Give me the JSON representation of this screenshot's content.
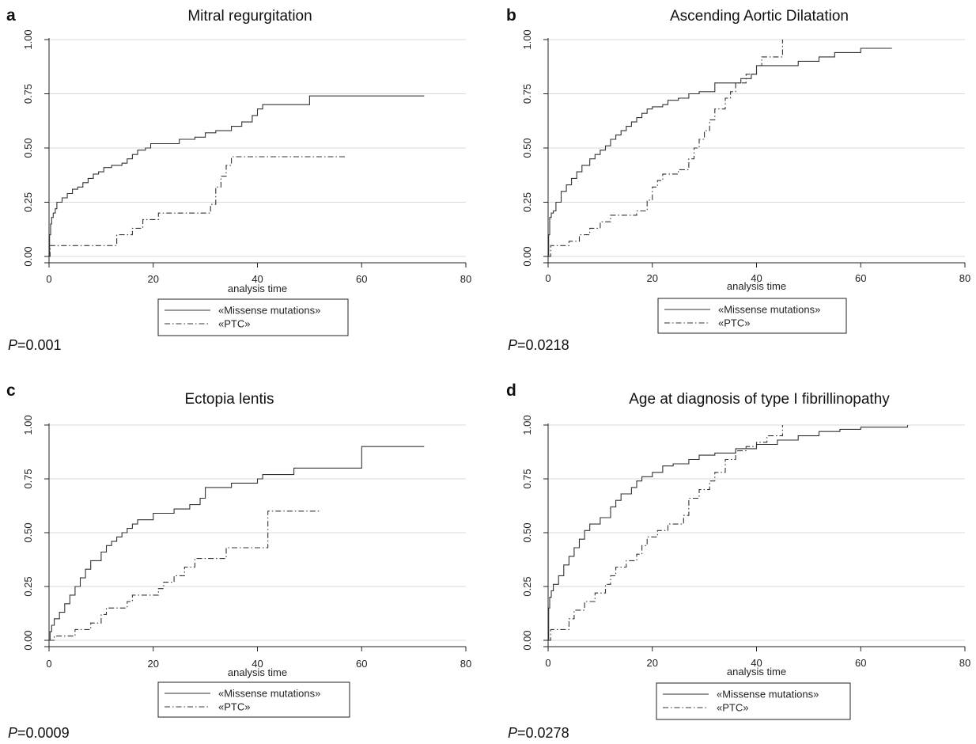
{
  "chart_data": [
    {
      "type": "line",
      "panel": "a",
      "title": "Mitral regurgitation",
      "xlabel": "analysis time",
      "ylabel": "",
      "xlim": [
        0,
        80
      ],
      "ylim": [
        0,
        1
      ],
      "x_ticks": [
        "0",
        "20",
        "40",
        "60",
        "80"
      ],
      "y_ticks": [
        "0.00",
        "0.25",
        "0.50",
        "0.75",
        "1.00"
      ],
      "grid": "horizontal",
      "legend": "below",
      "p_label": "P",
      "p_value": "=0.001",
      "series": [
        {
          "name": "«Missense mutations»",
          "style": "solid",
          "points": [
            [
              0,
              0
            ],
            [
              0.1,
              0.1
            ],
            [
              0.3,
              0.15
            ],
            [
              0.5,
              0.18
            ],
            [
              0.8,
              0.2
            ],
            [
              1.2,
              0.22
            ],
            [
              1.5,
              0.25
            ],
            [
              2.5,
              0.27
            ],
            [
              3.5,
              0.29
            ],
            [
              4.5,
              0.31
            ],
            [
              5.5,
              0.32
            ],
            [
              6.5,
              0.34
            ],
            [
              7.5,
              0.36
            ],
            [
              8.5,
              0.38
            ],
            [
              9.5,
              0.39
            ],
            [
              10.5,
              0.41
            ],
            [
              12,
              0.42
            ],
            [
              14,
              0.43
            ],
            [
              15,
              0.45
            ],
            [
              16,
              0.47
            ],
            [
              17,
              0.49
            ],
            [
              18.5,
              0.5
            ],
            [
              19.5,
              0.52
            ],
            [
              21,
              0.52
            ],
            [
              25,
              0.54
            ],
            [
              28,
              0.55
            ],
            [
              30,
              0.57
            ],
            [
              32,
              0.58
            ],
            [
              35,
              0.6
            ],
            [
              37,
              0.62
            ],
            [
              39,
              0.65
            ],
            [
              40,
              0.68
            ],
            [
              41,
              0.7
            ],
            [
              50,
              0.74
            ],
            [
              72,
              0.74
            ]
          ]
        },
        {
          "name": "«PTC»",
          "style": "dashdot",
          "points": [
            [
              0,
              0
            ],
            [
              0.2,
              0.05
            ],
            [
              13,
              0.1
            ],
            [
              16,
              0.13
            ],
            [
              18,
              0.17
            ],
            [
              21,
              0.2
            ],
            [
              31,
              0.24
            ],
            [
              32,
              0.32
            ],
            [
              33,
              0.37
            ],
            [
              34,
              0.42
            ],
            [
              35,
              0.46
            ],
            [
              57,
              0.46
            ]
          ]
        }
      ]
    },
    {
      "type": "line",
      "panel": "b",
      "title": "Ascending Aortic Dilatation",
      "xlabel": "analysis time",
      "ylabel": "",
      "xlim": [
        0,
        80
      ],
      "ylim": [
        0,
        1
      ],
      "x_ticks": [
        "0",
        "20",
        "40",
        "60",
        "80"
      ],
      "y_ticks": [
        "0.00",
        "0.25",
        "0.50",
        "0.75",
        "1.00"
      ],
      "grid": "horizontal",
      "legend": "below",
      "p_label": "P",
      "p_value": "=0.0218",
      "series": [
        {
          "name": "«Missense mutations»",
          "style": "solid",
          "points": [
            [
              0,
              0
            ],
            [
              0.1,
              0.1
            ],
            [
              0.3,
              0.18
            ],
            [
              0.6,
              0.2
            ],
            [
              1,
              0.21
            ],
            [
              1.5,
              0.25
            ],
            [
              2.5,
              0.3
            ],
            [
              3.5,
              0.33
            ],
            [
              4.5,
              0.36
            ],
            [
              5.5,
              0.39
            ],
            [
              6.5,
              0.42
            ],
            [
              8,
              0.45
            ],
            [
              9,
              0.47
            ],
            [
              10,
              0.49
            ],
            [
              11,
              0.51
            ],
            [
              12,
              0.54
            ],
            [
              13,
              0.56
            ],
            [
              14,
              0.58
            ],
            [
              15,
              0.6
            ],
            [
              16,
              0.62
            ],
            [
              17,
              0.64
            ],
            [
              18,
              0.66
            ],
            [
              19,
              0.68
            ],
            [
              20,
              0.69
            ],
            [
              22,
              0.7
            ],
            [
              23,
              0.72
            ],
            [
              25,
              0.73
            ],
            [
              27,
              0.75
            ],
            [
              29,
              0.76
            ],
            [
              32,
              0.8
            ],
            [
              37,
              0.82
            ],
            [
              39,
              0.84
            ],
            [
              40,
              0.88
            ],
            [
              41,
              0.88
            ],
            [
              48,
              0.9
            ],
            [
              52,
              0.92
            ],
            [
              55,
              0.94
            ],
            [
              60,
              0.96
            ],
            [
              66,
              0.96
            ]
          ]
        },
        {
          "name": "«PTC»",
          "style": "dashdot",
          "points": [
            [
              0,
              0
            ],
            [
              0.5,
              0.05
            ],
            [
              4,
              0.07
            ],
            [
              6,
              0.1
            ],
            [
              8,
              0.13
            ],
            [
              10,
              0.16
            ],
            [
              12,
              0.19
            ],
            [
              17,
              0.21
            ],
            [
              19,
              0.26
            ],
            [
              20,
              0.32
            ],
            [
              21,
              0.35
            ],
            [
              22,
              0.38
            ],
            [
              25,
              0.4
            ],
            [
              27,
              0.45
            ],
            [
              28,
              0.5
            ],
            [
              29,
              0.54
            ],
            [
              30,
              0.58
            ],
            [
              31,
              0.63
            ],
            [
              32,
              0.68
            ],
            [
              34,
              0.73
            ],
            [
              35,
              0.76
            ],
            [
              36,
              0.8
            ],
            [
              38,
              0.84
            ],
            [
              40,
              0.88
            ],
            [
              41,
              0.92
            ],
            [
              45,
              1.0
            ]
          ]
        }
      ]
    },
    {
      "type": "line",
      "panel": "c",
      "title": "Ectopia lentis",
      "xlabel": "analysis time",
      "ylabel": "",
      "xlim": [
        0,
        80
      ],
      "ylim": [
        0,
        1
      ],
      "x_ticks": [
        "0",
        "20",
        "40",
        "60",
        "80"
      ],
      "y_ticks": [
        "0.00",
        "0.25",
        "0.50",
        "0.75",
        "1.00"
      ],
      "grid": "horizontal",
      "legend": "below",
      "p_label": "P",
      "p_value": "=0.0009",
      "series": [
        {
          "name": "«Missense mutations»",
          "style": "solid",
          "points": [
            [
              0,
              0
            ],
            [
              0.2,
              0.04
            ],
            [
              0.5,
              0.07
            ],
            [
              1,
              0.1
            ],
            [
              2,
              0.13
            ],
            [
              3,
              0.17
            ],
            [
              4,
              0.21
            ],
            [
              5,
              0.25
            ],
            [
              6,
              0.29
            ],
            [
              7,
              0.33
            ],
            [
              8,
              0.37
            ],
            [
              10,
              0.41
            ],
            [
              11,
              0.44
            ],
            [
              12,
              0.46
            ],
            [
              13,
              0.48
            ],
            [
              14,
              0.5
            ],
            [
              15,
              0.52
            ],
            [
              16,
              0.54
            ],
            [
              17,
              0.56
            ],
            [
              20,
              0.59
            ],
            [
              24,
              0.61
            ],
            [
              27,
              0.63
            ],
            [
              29,
              0.66
            ],
            [
              30,
              0.71
            ],
            [
              35,
              0.73
            ],
            [
              40,
              0.75
            ],
            [
              41,
              0.77
            ],
            [
              47,
              0.8
            ],
            [
              60,
              0.9
            ],
            [
              72,
              0.9
            ]
          ]
        },
        {
          "name": "«PTC»",
          "style": "dashdot",
          "points": [
            [
              0,
              0
            ],
            [
              1,
              0.02
            ],
            [
              5,
              0.05
            ],
            [
              8,
              0.08
            ],
            [
              10,
              0.12
            ],
            [
              11,
              0.15
            ],
            [
              15,
              0.18
            ],
            [
              16,
              0.21
            ],
            [
              21,
              0.24
            ],
            [
              22,
              0.27
            ],
            [
              24,
              0.3
            ],
            [
              26,
              0.34
            ],
            [
              28,
              0.38
            ],
            [
              34,
              0.43
            ],
            [
              42,
              0.6
            ],
            [
              52,
              0.6
            ]
          ]
        }
      ]
    },
    {
      "type": "line",
      "panel": "d",
      "title": "Age at diagnosis of type I fibrillinopathy",
      "xlabel": "analysis time",
      "ylabel": "",
      "xlim": [
        0,
        80
      ],
      "ylim": [
        0,
        1
      ],
      "x_ticks": [
        "0",
        "20",
        "40",
        "60",
        "80"
      ],
      "y_ticks": [
        "0.00",
        "0.25",
        "0.50",
        "0.75",
        "1.00"
      ],
      "grid": "horizontal",
      "legend": "below",
      "p_label": "P",
      "p_value": "=0.0278",
      "series": [
        {
          "name": "«Missense mutations»",
          "style": "solid",
          "points": [
            [
              0,
              0
            ],
            [
              0.1,
              0.15
            ],
            [
              0.3,
              0.2
            ],
            [
              0.6,
              0.23
            ],
            [
              1,
              0.26
            ],
            [
              2,
              0.3
            ],
            [
              3,
              0.35
            ],
            [
              4,
              0.39
            ],
            [
              5,
              0.43
            ],
            [
              6,
              0.47
            ],
            [
              7,
              0.51
            ],
            [
              8,
              0.54
            ],
            [
              10,
              0.57
            ],
            [
              12,
              0.62
            ],
            [
              13,
              0.65
            ],
            [
              14,
              0.68
            ],
            [
              16,
              0.71
            ],
            [
              17,
              0.74
            ],
            [
              18,
              0.76
            ],
            [
              20,
              0.78
            ],
            [
              22,
              0.81
            ],
            [
              24,
              0.82
            ],
            [
              27,
              0.84
            ],
            [
              29,
              0.86
            ],
            [
              32,
              0.87
            ],
            [
              36,
              0.89
            ],
            [
              40,
              0.91
            ],
            [
              44,
              0.93
            ],
            [
              48,
              0.95
            ],
            [
              52,
              0.97
            ],
            [
              56,
              0.98
            ],
            [
              60,
              0.99
            ],
            [
              69,
              1.0
            ]
          ]
        },
        {
          "name": "«PTC»",
          "style": "dashdot",
          "points": [
            [
              0,
              0
            ],
            [
              0.5,
              0.05
            ],
            [
              4,
              0.1
            ],
            [
              5,
              0.14
            ],
            [
              7,
              0.18
            ],
            [
              9,
              0.22
            ],
            [
              11,
              0.26
            ],
            [
              12,
              0.3
            ],
            [
              13,
              0.34
            ],
            [
              15,
              0.37
            ],
            [
              17,
              0.4
            ],
            [
              18,
              0.44
            ],
            [
              19,
              0.48
            ],
            [
              21,
              0.51
            ],
            [
              23,
              0.54
            ],
            [
              26,
              0.58
            ],
            [
              27,
              0.66
            ],
            [
              29,
              0.7
            ],
            [
              31,
              0.74
            ],
            [
              32,
              0.78
            ],
            [
              34,
              0.84
            ],
            [
              36,
              0.88
            ],
            [
              38,
              0.9
            ],
            [
              40,
              0.92
            ],
            [
              42,
              0.95
            ],
            [
              45,
              1.0
            ]
          ]
        }
      ]
    }
  ]
}
